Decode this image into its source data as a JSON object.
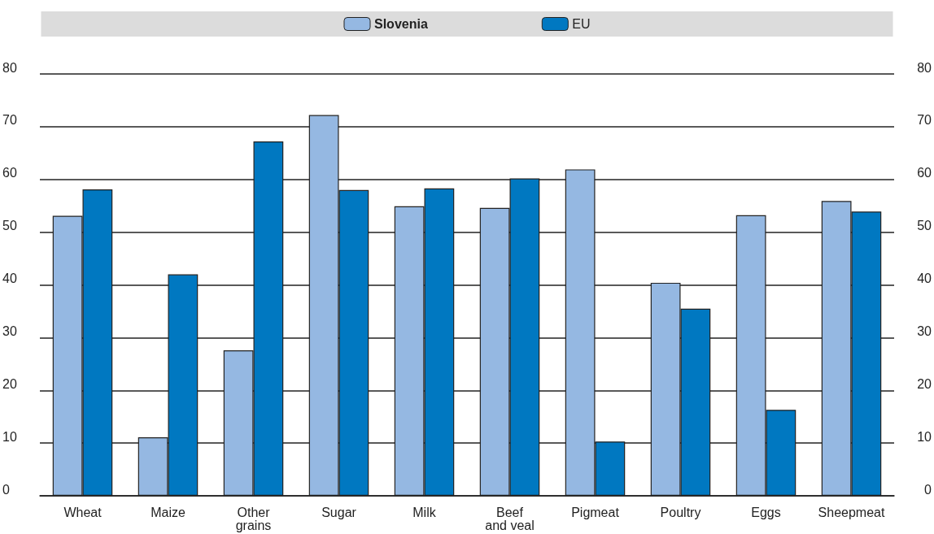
{
  "chart_data": {
    "type": "bar",
    "categories": [
      "Wheat",
      "Maize",
      "Other\ngrains",
      "Sugar",
      "Milk",
      "Beef\nand veal",
      "Pigmeat",
      "Poultry",
      "Eggs",
      "Sheepmeat"
    ],
    "series": [
      {
        "name": "Slovenia",
        "color": "#95b8e2",
        "values": [
          53.1,
          11.1,
          27.6,
          72.2,
          54.9,
          54.6,
          61.9,
          40.4,
          53.2,
          55.9
        ]
      },
      {
        "name": "EU",
        "color": "#0078c1",
        "values": [
          58.1,
          42.0,
          67.2,
          58.0,
          58.3,
          60.2,
          10.3,
          35.5,
          16.3,
          53.9
        ]
      }
    ],
    "ylim": [
      0,
      80
    ],
    "yticks": [
      0,
      10,
      20,
      30,
      40,
      50,
      60,
      70,
      80
    ],
    "y2lim": [
      0,
      80
    ],
    "y2ticks": [
      0,
      10,
      20,
      30,
      40,
      50,
      60,
      70,
      80
    ],
    "grid": "y",
    "legend": "top"
  }
}
